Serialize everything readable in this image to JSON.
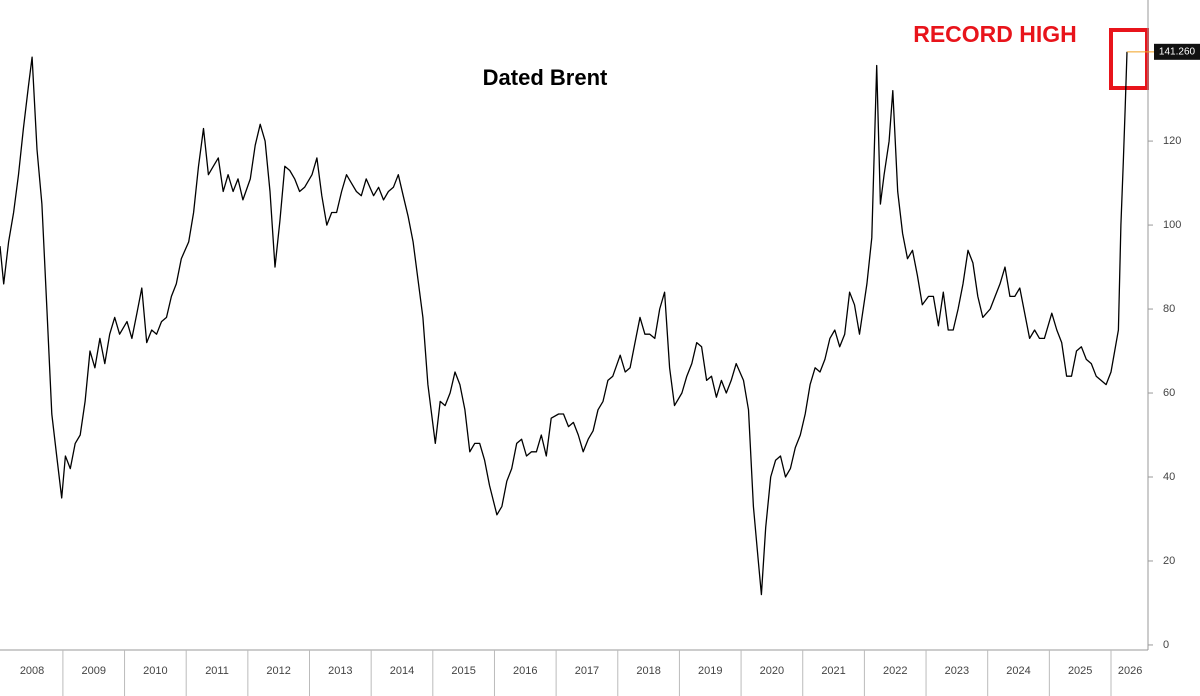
{
  "chart_data": {
    "type": "line",
    "title": "Dated Brent",
    "annotation": "RECORD HIGH",
    "last_value_label": "141.260",
    "series": [
      {
        "name": "Dated Brent",
        "color": "#000000",
        "x": [
          2007.98,
          2008.04,
          2008.12,
          2008.2,
          2008.28,
          2008.36,
          2008.44,
          2008.5,
          2008.58,
          2008.66,
          2008.74,
          2008.82,
          2008.9,
          2008.98,
          2009.04,
          2009.12,
          2009.2,
          2009.28,
          2009.36,
          2009.44,
          2009.52,
          2009.6,
          2009.68,
          2009.76,
          2009.84,
          2009.92,
          2010.04,
          2010.12,
          2010.2,
          2010.28,
          2010.36,
          2010.44,
          2010.52,
          2010.6,
          2010.68,
          2010.76,
          2010.84,
          2010.92,
          2011.04,
          2011.12,
          2011.2,
          2011.28,
          2011.36,
          2011.44,
          2011.52,
          2011.6,
          2011.68,
          2011.76,
          2011.84,
          2011.92,
          2012.04,
          2012.12,
          2012.2,
          2012.28,
          2012.36,
          2012.44,
          2012.52,
          2012.6,
          2012.68,
          2012.76,
          2012.84,
          2012.92,
          2013.04,
          2013.12,
          2013.2,
          2013.28,
          2013.36,
          2013.44,
          2013.52,
          2013.6,
          2013.68,
          2013.76,
          2013.84,
          2013.92,
          2014.04,
          2014.12,
          2014.2,
          2014.28,
          2014.36,
          2014.44,
          2014.52,
          2014.6,
          2014.68,
          2014.76,
          2014.84,
          2014.92,
          2015.04,
          2015.12,
          2015.2,
          2015.28,
          2015.36,
          2015.44,
          2015.52,
          2015.6,
          2015.68,
          2015.76,
          2015.84,
          2015.92,
          2016.04,
          2016.12,
          2016.2,
          2016.28,
          2016.36,
          2016.44,
          2016.52,
          2016.6,
          2016.68,
          2016.76,
          2016.84,
          2016.92,
          2017.04,
          2017.12,
          2017.2,
          2017.28,
          2017.36,
          2017.44,
          2017.52,
          2017.6,
          2017.68,
          2017.76,
          2017.84,
          2017.92,
          2018.04,
          2018.12,
          2018.2,
          2018.28,
          2018.36,
          2018.44,
          2018.52,
          2018.6,
          2018.68,
          2018.76,
          2018.84,
          2018.92,
          2019.04,
          2019.12,
          2019.2,
          2019.28,
          2019.36,
          2019.44,
          2019.52,
          2019.6,
          2019.68,
          2019.76,
          2019.84,
          2019.92,
          2020.04,
          2020.12,
          2020.2,
          2020.28,
          2020.33,
          2020.4,
          2020.48,
          2020.56,
          2020.64,
          2020.72,
          2020.8,
          2020.88,
          2020.96,
          2021.04,
          2021.12,
          2021.2,
          2021.28,
          2021.36,
          2021.44,
          2021.52,
          2021.6,
          2021.68,
          2021.76,
          2021.84,
          2021.92,
          2022.04,
          2022.12,
          2022.2,
          2022.26,
          2022.32,
          2022.4,
          2022.46,
          2022.54,
          2022.62,
          2022.7,
          2022.78,
          2022.86,
          2022.94,
          2023.04,
          2023.12,
          2023.2,
          2023.28,
          2023.36,
          2023.44,
          2023.52,
          2023.6,
          2023.68,
          2023.76,
          2023.84,
          2023.92,
          2024.04,
          2024.12,
          2024.2,
          2024.28,
          2024.36,
          2024.44,
          2024.52,
          2024.6,
          2024.68,
          2024.76,
          2024.84,
          2024.92,
          2025.04,
          2025.12,
          2025.2,
          2025.28,
          2025.36,
          2025.44,
          2025.52,
          2025.6,
          2025.68,
          2025.76,
          2025.84,
          2025.92,
          2026.0,
          2026.06,
          2026.12,
          2026.16,
          2026.2,
          2026.23,
          2026.26
        ],
        "values": [
          95,
          86,
          96,
          103,
          112,
          123,
          133,
          140,
          118,
          105,
          80,
          55,
          45,
          35,
          45,
          42,
          48,
          50,
          58,
          70,
          66,
          73,
          67,
          74,
          78,
          74,
          77,
          73,
          79,
          85,
          72,
          75,
          74,
          77,
          78,
          83,
          86,
          92,
          96,
          103,
          114,
          123,
          112,
          114,
          116,
          108,
          112,
          108,
          111,
          106,
          111,
          119,
          124,
          120,
          108,
          90,
          101,
          114,
          113,
          111,
          108,
          109,
          112,
          116,
          107,
          100,
          103,
          103,
          108,
          112,
          110,
          108,
          107,
          111,
          107,
          109,
          106,
          108,
          109,
          112,
          107,
          102,
          96,
          87,
          78,
          62,
          48,
          58,
          57,
          60,
          65,
          62,
          56,
          46,
          48,
          48,
          44,
          38,
          31,
          33,
          39,
          42,
          48,
          49,
          45,
          46,
          46,
          50,
          45,
          54,
          55,
          55,
          52,
          53,
          50,
          46,
          49,
          51,
          56,
          58,
          63,
          64,
          69,
          65,
          66,
          72,
          78,
          74,
          74,
          73,
          80,
          84,
          66,
          57,
          60,
          64,
          67,
          72,
          71,
          63,
          64,
          59,
          63,
          60,
          63,
          67,
          63,
          56,
          33,
          20,
          12,
          28,
          40,
          44,
          45,
          40,
          42,
          47,
          50,
          55,
          62,
          66,
          65,
          68,
          73,
          75,
          71,
          74,
          84,
          81,
          74,
          86,
          97,
          138,
          105,
          112,
          120,
          132,
          108,
          98,
          92,
          94,
          88,
          81,
          83,
          83,
          76,
          84,
          75,
          75,
          80,
          86,
          94,
          91,
          83,
          78,
          80,
          83,
          86,
          90,
          83,
          83,
          85,
          79,
          73,
          75,
          73,
          73,
          79,
          75,
          72,
          64,
          64,
          70,
          71,
          68,
          67,
          64,
          63,
          62,
          65,
          70,
          75,
          100,
          115,
          128,
          141.26
        ]
      }
    ],
    "xlim": [
      2007.98,
      2026.6
    ],
    "xticks": [
      {
        "value": 2008.5,
        "label": "2008"
      },
      {
        "value": 2009.5,
        "label": "2009"
      },
      {
        "value": 2010.5,
        "label": "2010"
      },
      {
        "value": 2011.5,
        "label": "2011"
      },
      {
        "value": 2012.5,
        "label": "2012"
      },
      {
        "value": 2013.5,
        "label": "2013"
      },
      {
        "value": 2014.5,
        "label": "2014"
      },
      {
        "value": 2015.5,
        "label": "2015"
      },
      {
        "value": 2016.5,
        "label": "2016"
      },
      {
        "value": 2017.5,
        "label": "2017"
      },
      {
        "value": 2018.5,
        "label": "2018"
      },
      {
        "value": 2019.5,
        "label": "2019"
      },
      {
        "value": 2020.5,
        "label": "2020"
      },
      {
        "value": 2021.5,
        "label": "2021"
      },
      {
        "value": 2022.5,
        "label": "2022"
      },
      {
        "value": 2023.5,
        "label": "2023"
      },
      {
        "value": 2024.5,
        "label": "2024"
      },
      {
        "value": 2025.5,
        "label": "2025"
      },
      {
        "value": 2026.31,
        "label": "2026"
      }
    ],
    "ylim": [
      -1.2,
      153.6
    ],
    "yticks": [
      0,
      20,
      40,
      60,
      80,
      100,
      120
    ]
  }
}
